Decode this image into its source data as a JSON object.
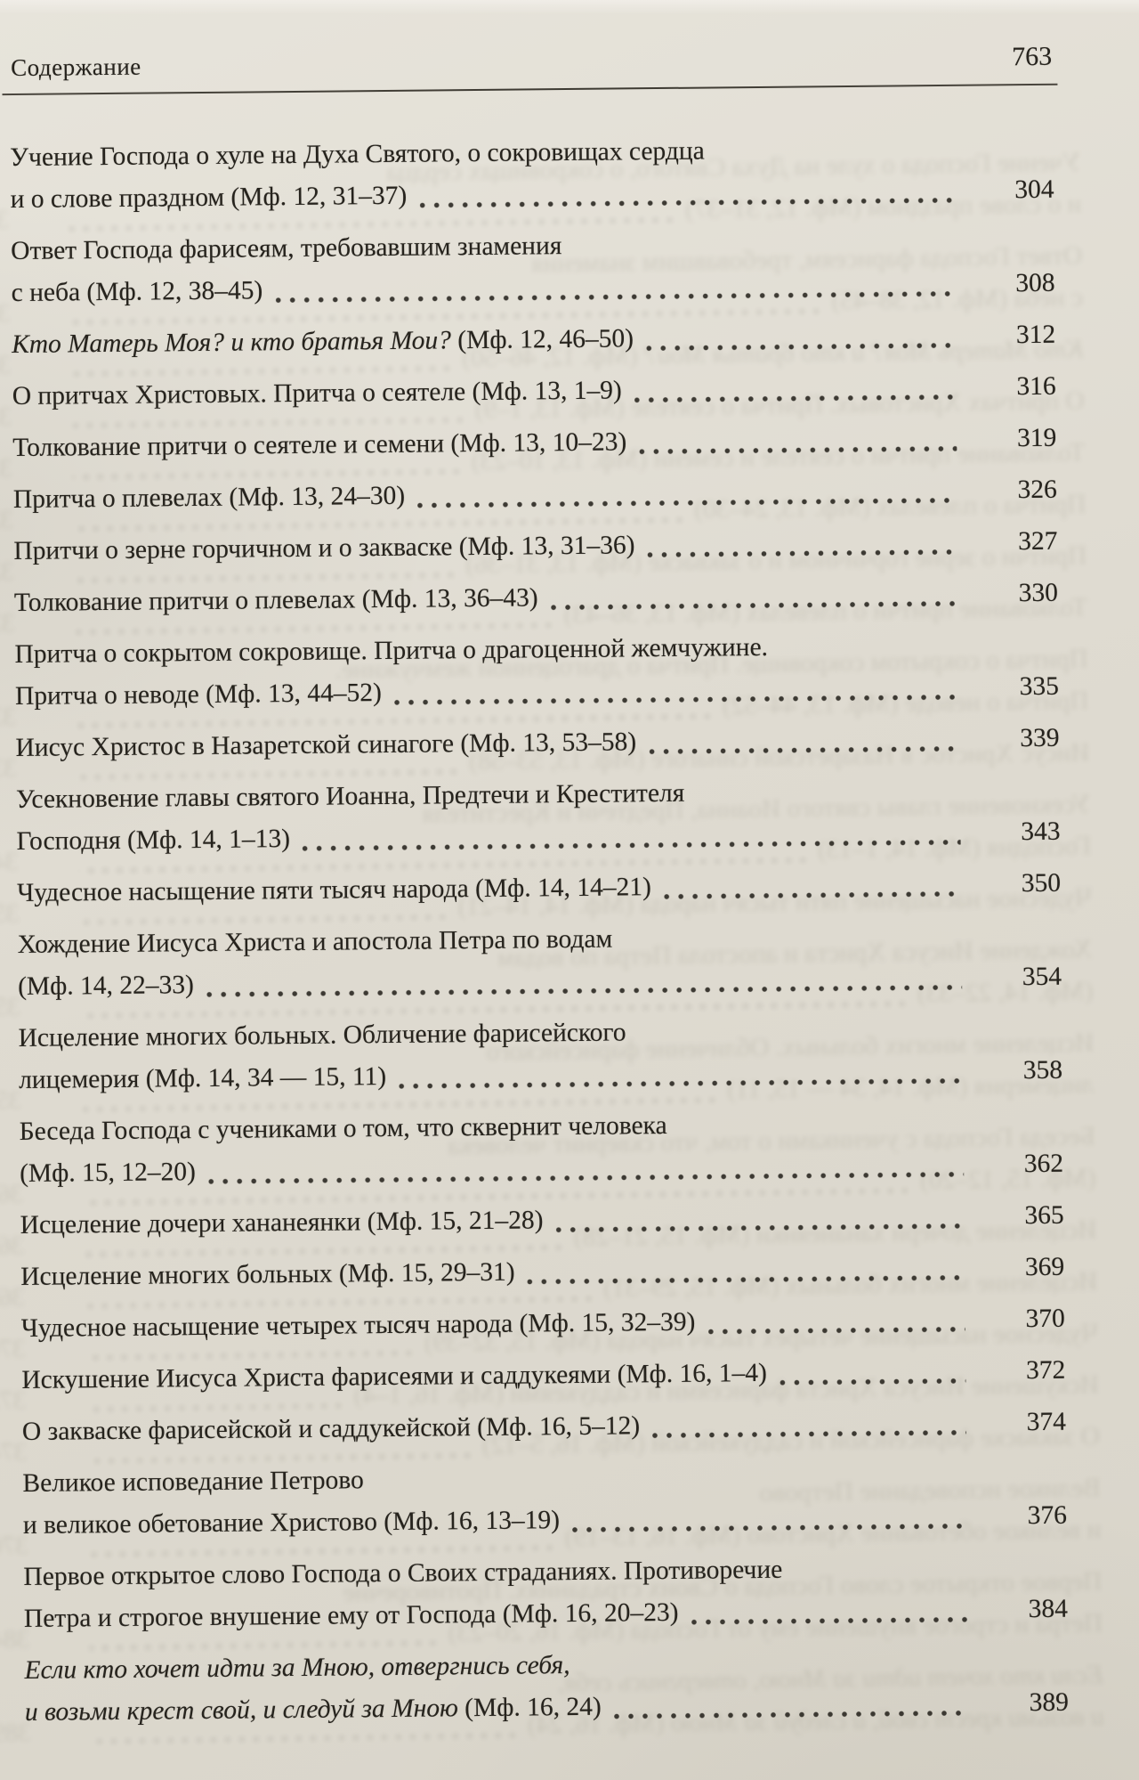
{
  "header": {
    "title": "Содержание",
    "page_number": "763"
  },
  "entries": [
    {
      "page": "304",
      "lines": [
        [
          {
            "t": "Учение Господа о хуле на Духа Святого, о сокровищах сердца",
            "i": false
          }
        ],
        [
          {
            "t": "и о слове праздном (Мф. 12, 31–37)",
            "i": false
          }
        ]
      ]
    },
    {
      "page": "308",
      "lines": [
        [
          {
            "t": "Ответ Господа фарисеям, требовавшим знамения",
            "i": false
          }
        ],
        [
          {
            "t": "с неба (Мф. 12, 38–45)",
            "i": false
          }
        ]
      ]
    },
    {
      "page": "312",
      "lines": [
        [
          {
            "t": "Кто Матерь Моя? и кто братья Мои?",
            "i": true
          },
          {
            "t": " (Мф. 12, 46–50)",
            "i": false
          }
        ]
      ]
    },
    {
      "page": "316",
      "lines": [
        [
          {
            "t": "О притчах Христовых. Притча о сеятеле (Мф. 13, 1–9)",
            "i": false
          }
        ]
      ]
    },
    {
      "page": "319",
      "lines": [
        [
          {
            "t": "Толкование притчи о сеятеле и семени (Мф. 13, 10–23)",
            "i": false
          }
        ]
      ]
    },
    {
      "page": "326",
      "lines": [
        [
          {
            "t": "Притча о плевелах (Мф. 13, 24–30)",
            "i": false
          }
        ]
      ]
    },
    {
      "page": "327",
      "lines": [
        [
          {
            "t": "Притчи о зерне горчичном и о закваске (Мф. 13, 31–36)",
            "i": false
          }
        ]
      ]
    },
    {
      "page": "330",
      "lines": [
        [
          {
            "t": "Толкование притчи о плевелах (Мф. 13, 36–43)",
            "i": false
          }
        ]
      ]
    },
    {
      "page": "335",
      "lines": [
        [
          {
            "t": "Притча о сокрытом сокровище. Притча о драгоценной жемчужине.",
            "i": false
          }
        ],
        [
          {
            "t": "Притча о неводе (Мф. 13, 44–52)",
            "i": false
          }
        ]
      ]
    },
    {
      "page": "339",
      "lines": [
        [
          {
            "t": "Иисус Христос в Назаретской синагоге (Мф. 13, 53–58)",
            "i": false
          }
        ]
      ]
    },
    {
      "page": "343",
      "lines": [
        [
          {
            "t": "Усекновение главы святого Иоанна, Предтечи и Крестителя",
            "i": false
          }
        ],
        [
          {
            "t": "Господня (Мф. 14, 1–13)",
            "i": false
          }
        ]
      ]
    },
    {
      "page": "350",
      "lines": [
        [
          {
            "t": "Чудесное насыщение пяти тысяч народа (Мф. 14, 14–21)",
            "i": false
          }
        ]
      ]
    },
    {
      "page": "354",
      "lines": [
        [
          {
            "t": "Хождение Иисуса Христа и апостола Петра по водам",
            "i": false
          }
        ],
        [
          {
            "t": "(Мф. 14, 22–33)",
            "i": false
          }
        ]
      ]
    },
    {
      "page": "358",
      "lines": [
        [
          {
            "t": "Исцеление многих больных. Обличение фарисейского",
            "i": false
          }
        ],
        [
          {
            "t": "лицемерия (Мф. 14, 34 — 15, 11)",
            "i": false
          }
        ]
      ]
    },
    {
      "page": "362",
      "lines": [
        [
          {
            "t": "Беседа Господа с учениками о том, что сквернит человека",
            "i": false
          }
        ],
        [
          {
            "t": "(Мф. 15, 12–20)",
            "i": false
          }
        ]
      ]
    },
    {
      "page": "365",
      "lines": [
        [
          {
            "t": "Исцеление дочери хананеянки (Мф. 15, 21–28)",
            "i": false
          }
        ]
      ]
    },
    {
      "page": "369",
      "lines": [
        [
          {
            "t": "Исцеление многих больных (Мф. 15, 29–31)",
            "i": false
          }
        ]
      ]
    },
    {
      "page": "370",
      "lines": [
        [
          {
            "t": "Чудесное насыщение четырех тысяч народа (Мф. 15, 32–39)",
            "i": false
          }
        ]
      ]
    },
    {
      "page": "372",
      "lines": [
        [
          {
            "t": "Искушение Иисуса Христа фарисеями и саддукеями (Мф. 16, 1–4)",
            "i": false
          }
        ]
      ]
    },
    {
      "page": "374",
      "lines": [
        [
          {
            "t": "О закваске фарисейской и саддукейской (Мф. 16, 5–12)",
            "i": false
          }
        ]
      ]
    },
    {
      "page": "376",
      "lines": [
        [
          {
            "t": "Великое исповедание Петрово",
            "i": false
          }
        ],
        [
          {
            "t": "и великое обетование Христово (Мф. 16, 13–19)",
            "i": false
          }
        ]
      ]
    },
    {
      "page": "384",
      "lines": [
        [
          {
            "t": "Первое открытое слово Господа о Своих страданиях. Противоречие",
            "i": false
          }
        ],
        [
          {
            "t": "Петра и строгое внушение ему от Господа (Мф. 16, 20–23)",
            "i": false
          }
        ]
      ]
    },
    {
      "page": "389",
      "lines": [
        [
          {
            "t": "Если кто хочет идти за Мною, отвергнись себя,",
            "i": true
          }
        ],
        [
          {
            "t": "и возьми крест свой, и следуй за Мною",
            "i": true
          },
          {
            "t": " (Мф. 16, 24)",
            "i": false
          }
        ]
      ]
    }
  ]
}
